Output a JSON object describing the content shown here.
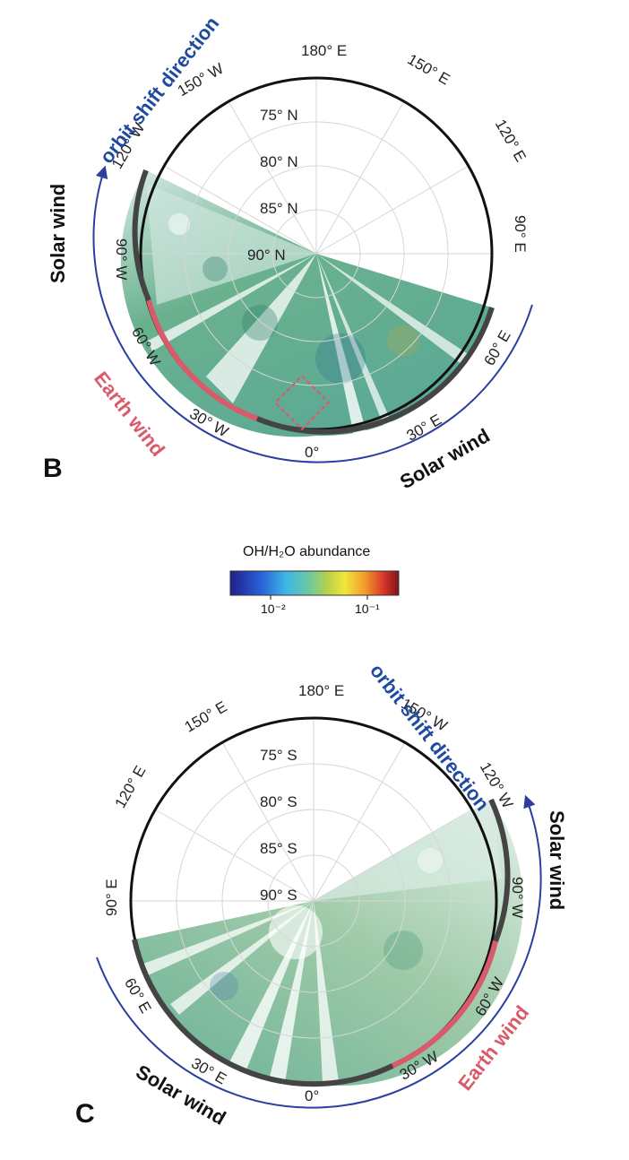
{
  "panels": [
    {
      "letter": "B",
      "hemisphere": "N",
      "lat_labels": [
        "75° N",
        "80° N",
        "85° N",
        "90° N"
      ],
      "lon_labels": [
        "180° E",
        "150° E",
        "120° E",
        "90° E",
        "60° E",
        "30° E",
        "0°",
        "30° W",
        "60° W",
        "90° W",
        "120° W",
        "150° W"
      ],
      "orbit_label": "orbit shift direction",
      "solar_wind_label": "Solar wind",
      "earth_wind_label": "Earth wind"
    },
    {
      "letter": "C",
      "hemisphere": "S",
      "lat_labels": [
        "75° S",
        "80° S",
        "85° S",
        "90° S"
      ],
      "lon_labels": [
        "180° E",
        "150° W",
        "120° W",
        "90° W",
        "60° W",
        "30° W",
        "0°",
        "30° E",
        "60° E",
        "90° E",
        "120° E",
        "150° E"
      ],
      "orbit_label": "orbit shift direction",
      "solar_wind_label": "Solar wind",
      "earth_wind_label": "Earth wind"
    }
  ],
  "colorbar": {
    "title": "OH/H₂O abundance",
    "tick_labels": [
      "10⁻²",
      "10⁻¹"
    ],
    "scale": "log"
  },
  "colors": {
    "orbit_arrow": "#2b3f9e",
    "orbit_text": "#1f4aa0",
    "earth_wind": "#d95a6a",
    "solar_wind_text": "#111111",
    "ring": "#111111"
  }
}
